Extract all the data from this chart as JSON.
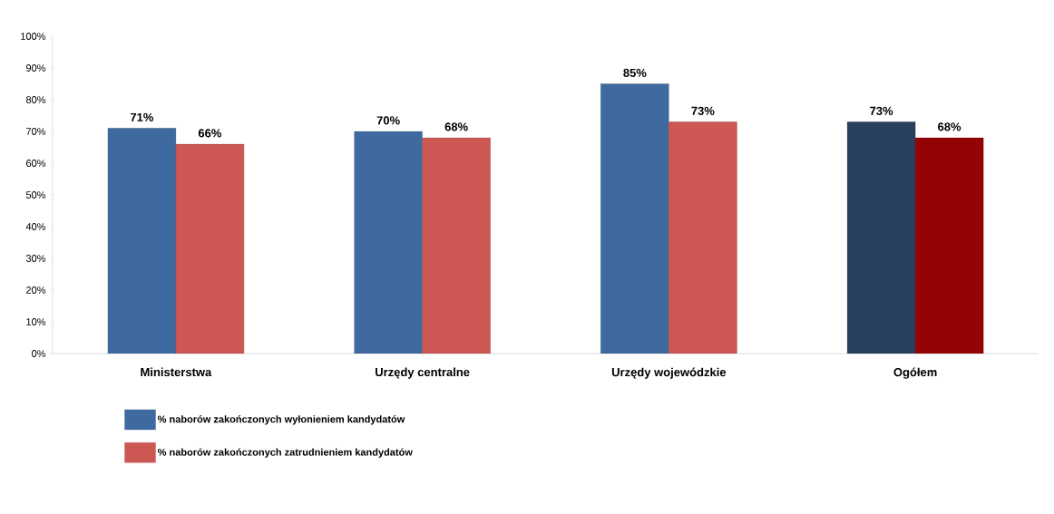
{
  "chart_data": {
    "type": "bar",
    "categories": [
      "Ministerstwa",
      "Urzędy centralne",
      "Urzędy wojewódzkie",
      "Ogółem"
    ],
    "series": [
      {
        "name": "% naborów zakończonych wyłonieniem kandydatów",
        "color": "#3e6aa0",
        "colors": [
          "#3e6aa0",
          "#3e6aa0",
          "#3e6aa0",
          "#283f5e"
        ],
        "values": [
          71,
          70,
          85,
          73
        ],
        "value_labels": [
          "71%",
          "70%",
          "85%",
          "73%"
        ]
      },
      {
        "name": "% naborów zakończonych zatrudnieniem kandydatów",
        "color": "#cd5753",
        "colors": [
          "#cd5753",
          "#cd5753",
          "#cd5753",
          "#930303"
        ],
        "values": [
          66,
          68,
          73,
          68
        ],
        "value_labels": [
          "66%",
          "68%",
          "73%",
          "68%"
        ]
      }
    ],
    "ylim": [
      0,
      100
    ],
    "yticks": [
      {
        "value": 0,
        "label": "0%"
      },
      {
        "value": 10,
        "label": "10%"
      },
      {
        "value": 20,
        "label": "20%"
      },
      {
        "value": 30,
        "label": "30%"
      },
      {
        "value": 40,
        "label": "40%"
      },
      {
        "value": 50,
        "label": "50%"
      },
      {
        "value": 60,
        "label": "60%"
      },
      {
        "value": 70,
        "label": "70%"
      },
      {
        "value": 80,
        "label": "80%"
      },
      {
        "value": 90,
        "label": "90%"
      },
      {
        "value": 100,
        "label": "100%"
      }
    ],
    "grid": false,
    "legend": "bottom left"
  }
}
